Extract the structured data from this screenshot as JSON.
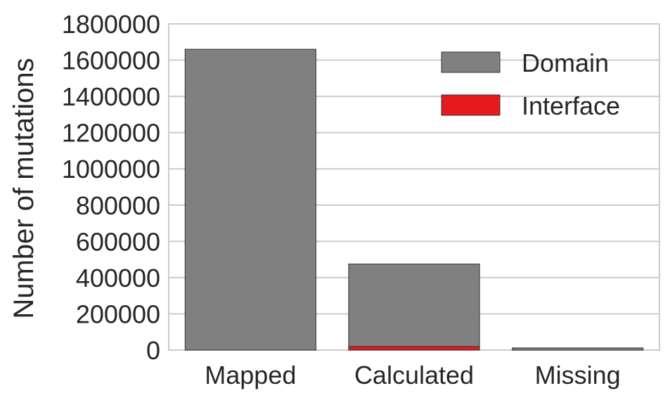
{
  "chart_data": {
    "type": "bar",
    "stacked": true,
    "categories": [
      "Mapped",
      "Calculated",
      "Missing"
    ],
    "series": [
      {
        "name": "Domain",
        "values": [
          1660000,
          475000,
          12000
        ],
        "color": "#808080"
      },
      {
        "name": "Interface",
        "values": [
          0,
          20000,
          0
        ],
        "color": "#e41a1c"
      }
    ],
    "title": "",
    "xlabel": "",
    "ylabel": "Number of mutations",
    "ylim": [
      0,
      1800000
    ],
    "yticks": [
      0,
      200000,
      400000,
      600000,
      800000,
      1000000,
      1200000,
      1400000,
      1600000,
      1800000
    ],
    "ytick_labels": [
      "0",
      "200000",
      "400000",
      "600000",
      "800000",
      "1000000",
      "1200000",
      "1400000",
      "1600000",
      "1800000"
    ],
    "grid": true,
    "legend_position": "top-right"
  }
}
